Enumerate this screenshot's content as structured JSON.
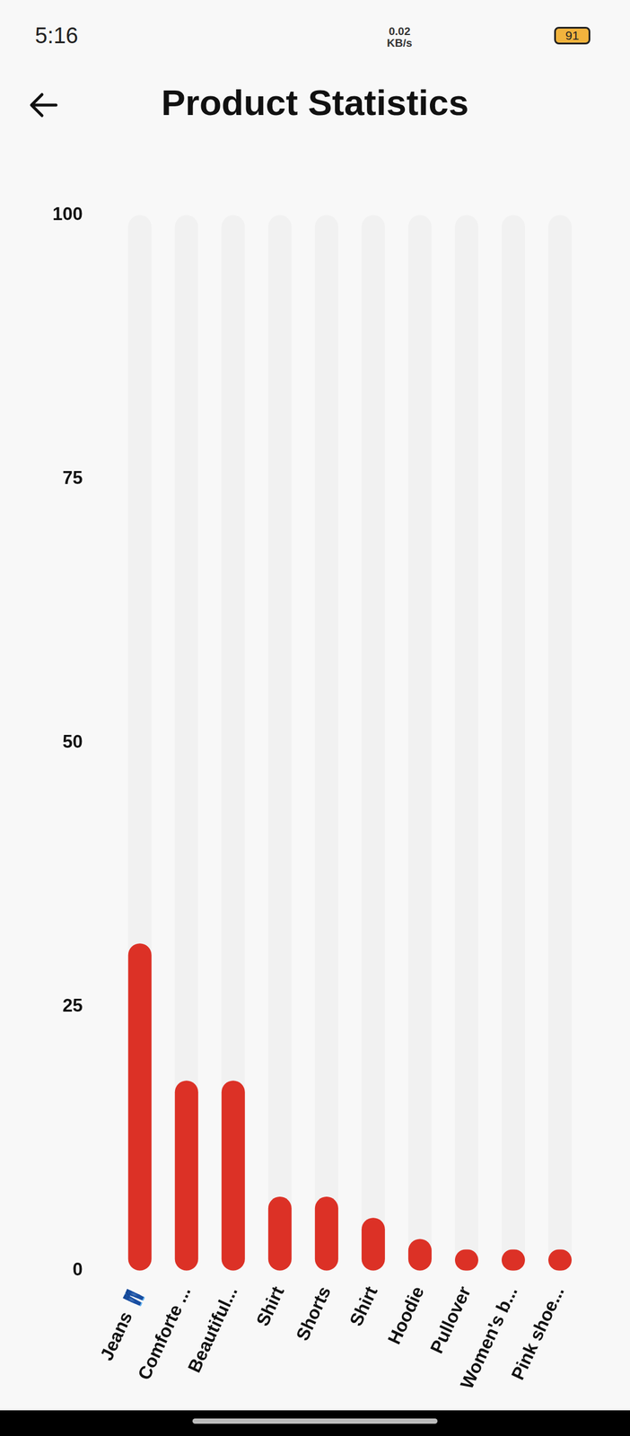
{
  "status_bar": {
    "time": "5:16",
    "network_speed": "0.02 KB/s",
    "battery": "91"
  },
  "chart_data": {
    "type": "bar",
    "title": "Product Statistics",
    "categories": [
      "Jeans 👖",
      "Comforte ...",
      "Beautiful...",
      "Shirt",
      "Shorts",
      "Shirt",
      "Hoodie",
      "Pullover",
      "Women's b...",
      "Pink shoe..."
    ],
    "values": [
      31,
      18,
      18,
      7,
      7,
      5,
      3,
      2,
      2,
      2
    ],
    "color": "#dc3126",
    "ylim": [
      0,
      100
    ],
    "yticks": [
      0,
      25,
      50,
      75,
      100
    ],
    "grid": false
  }
}
